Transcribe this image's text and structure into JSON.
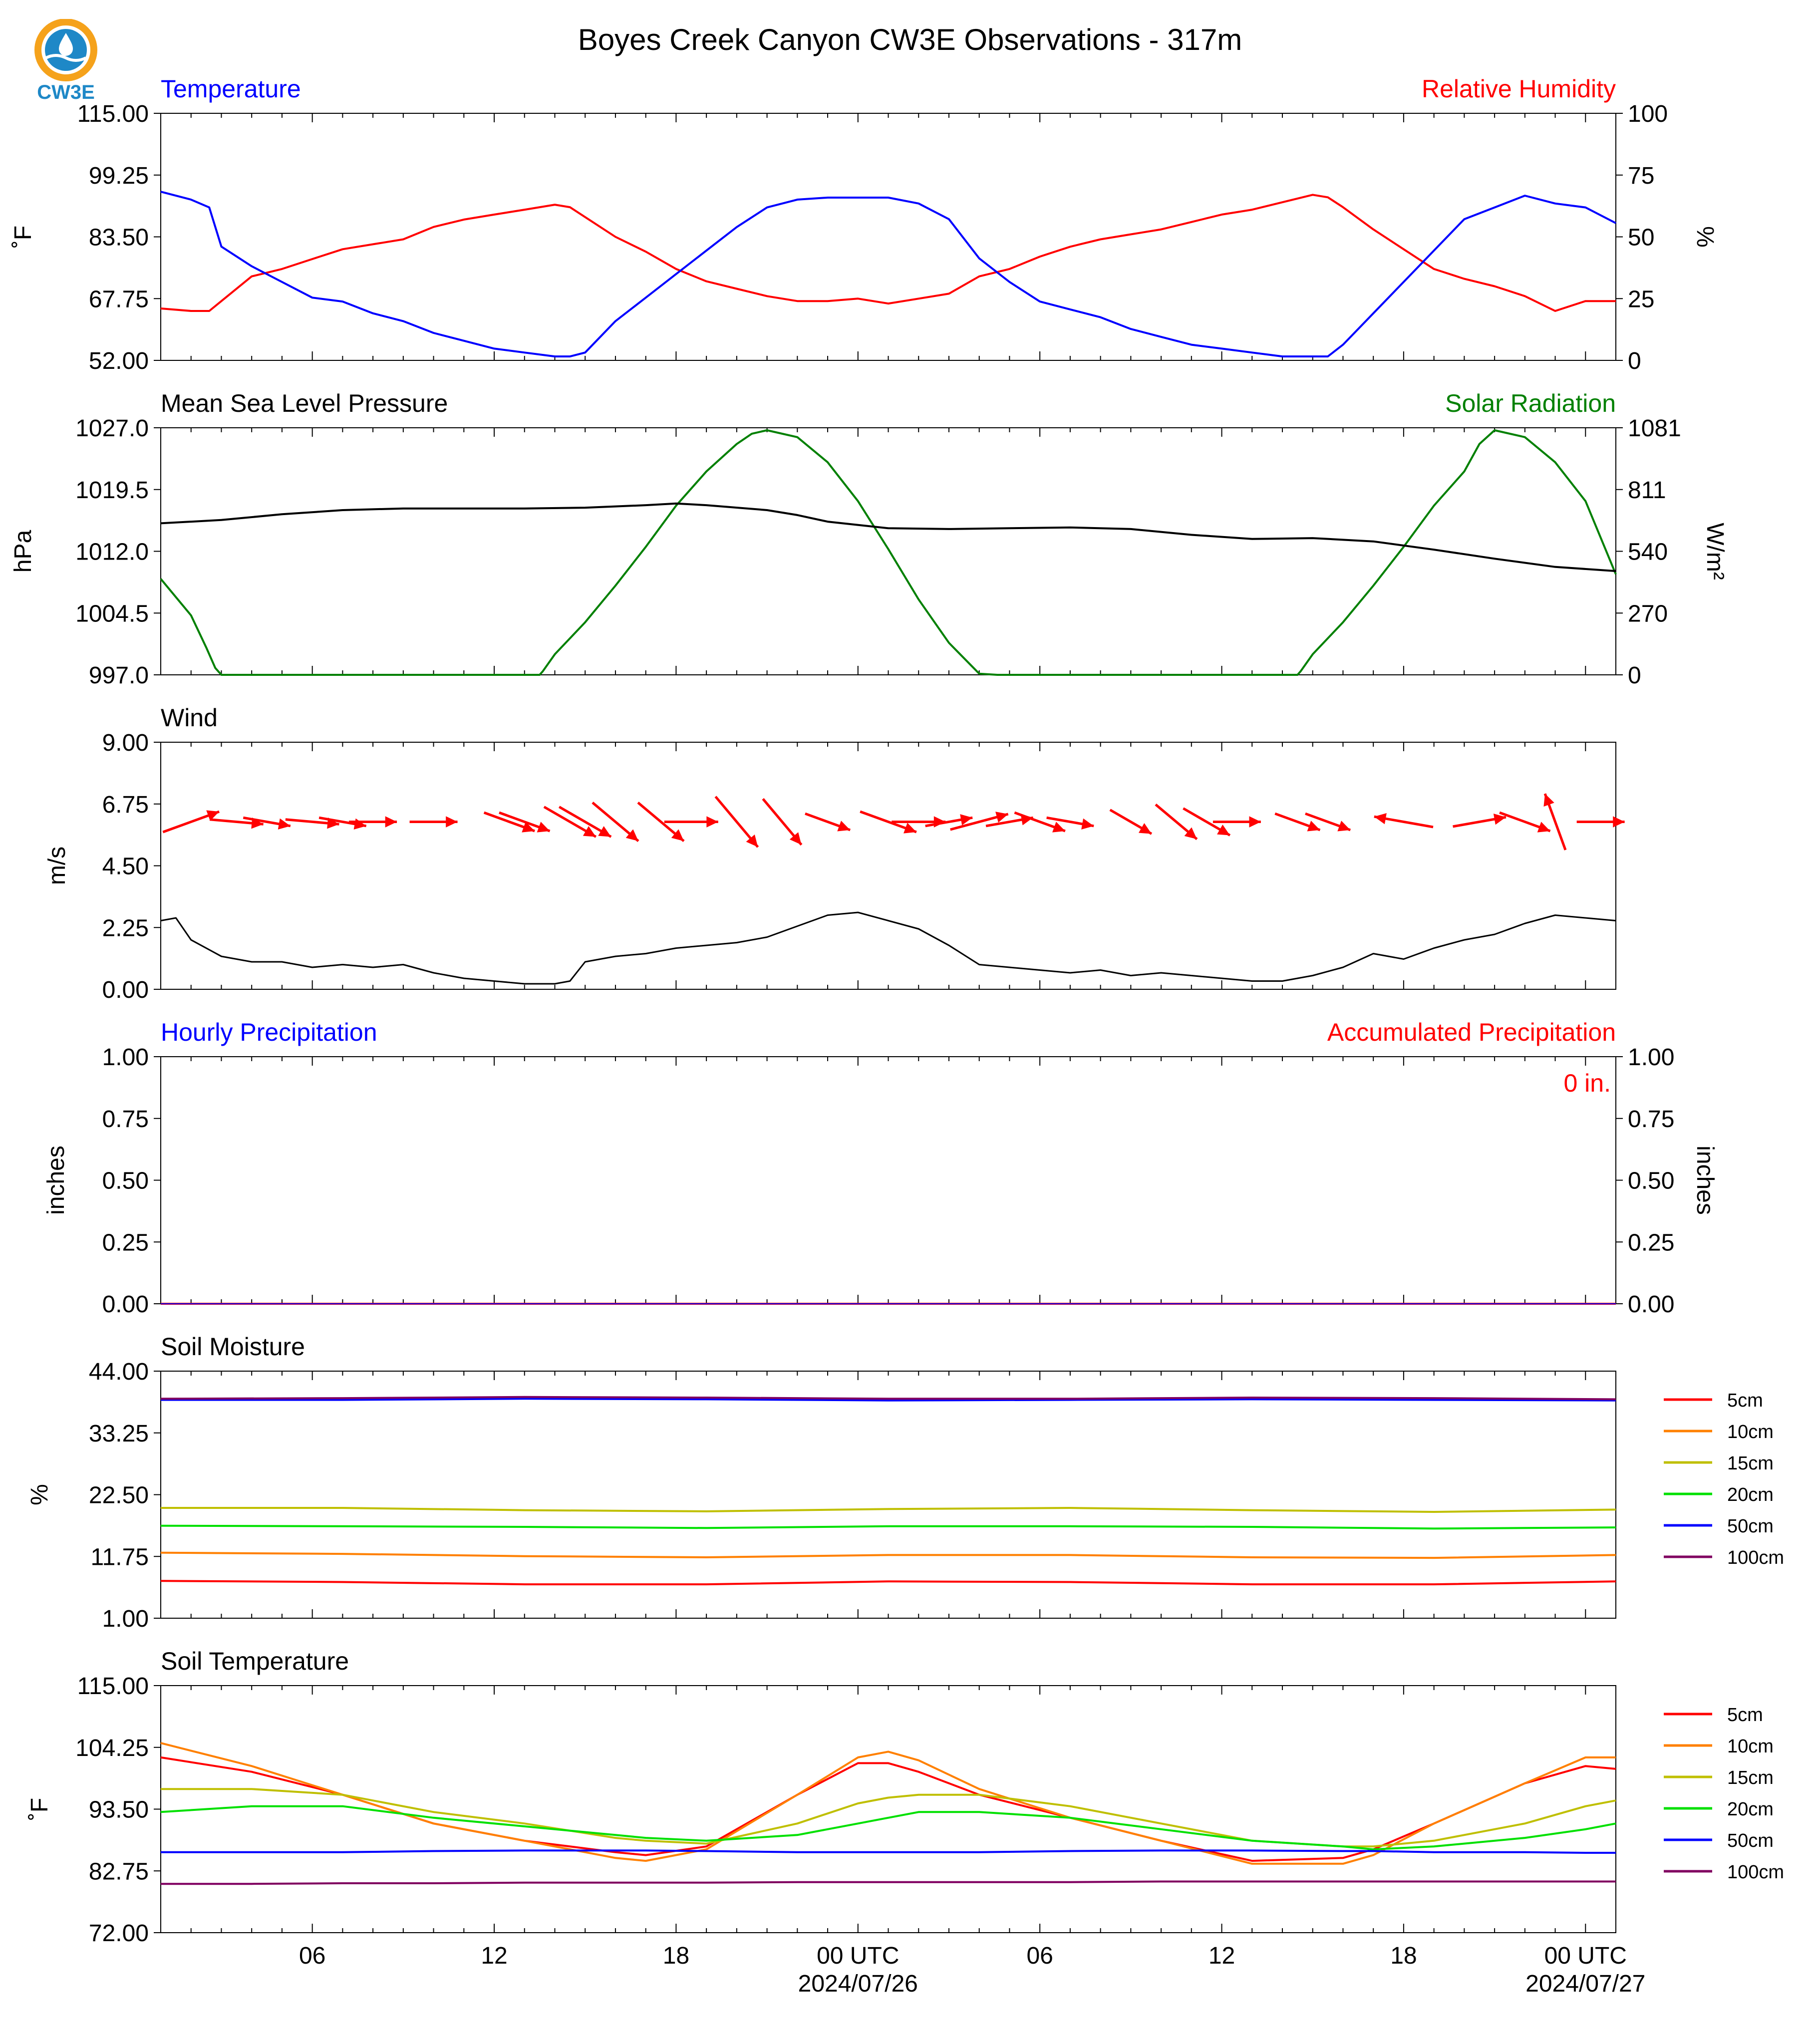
{
  "title": "Boyes Creek Canyon CW3E Observations - 317m",
  "logo": {
    "text": "CW3E",
    "ring_color": "#F5A21B",
    "drop_color": "#1E88C7"
  },
  "x_axis": {
    "ticks": [
      "06",
      "12",
      "18",
      "00 UTC",
      "06",
      "12",
      "18",
      "00 UTC"
    ],
    "dates": [
      "2024/07/26",
      "2024/07/27"
    ]
  },
  "panels": {
    "temp_rh": {
      "left_title": "Temperature",
      "right_title": "Relative Humidity",
      "left_color": "#0000ff",
      "right_color": "#ff0000",
      "left_unit": "˚F",
      "right_unit": "%",
      "left_ticks": [
        "115.00",
        "99.25",
        "83.50",
        "67.75",
        "52.00"
      ],
      "right_ticks": [
        "100",
        "75",
        "50",
        "25",
        "0"
      ]
    },
    "pressure_solar": {
      "left_title": "Mean Sea Level Pressure",
      "right_title": "Solar Radiation",
      "left_color": "#000000",
      "right_color": "#008000",
      "left_unit": "hPa",
      "right_unit": "W/m²",
      "left_ticks": [
        "1027.0",
        "1019.5",
        "1012.0",
        "1004.5",
        "997.0"
      ],
      "right_ticks": [
        "1081",
        "811",
        "540",
        "270",
        "0"
      ]
    },
    "wind": {
      "left_title": "Wind",
      "left_unit": "m/s",
      "left_ticks": [
        "9.00",
        "6.75",
        "4.50",
        "2.25",
        "0.00"
      ]
    },
    "precip": {
      "left_title": "Hourly Precipitation",
      "right_title": "Accumulated Precipitation",
      "left_color": "#0000ff",
      "right_color": "#ff0000",
      "left_unit": "inches",
      "right_unit": "inches",
      "left_ticks": [
        "1.00",
        "0.75",
        "0.50",
        "0.25",
        "0.00"
      ],
      "right_ticks": [
        "1.00",
        "0.75",
        "0.50",
        "0.25",
        "0.00"
      ],
      "accum_label": "0 in."
    },
    "soil_moisture": {
      "left_title": "Soil Moisture",
      "left_unit": "%",
      "left_ticks": [
        "44.00",
        "33.25",
        "22.50",
        "11.75",
        "1.00"
      ],
      "legend": [
        "5cm",
        "10cm",
        "15cm",
        "20cm",
        "50cm",
        "100cm"
      ]
    },
    "soil_temp": {
      "left_title": "Soil Temperature",
      "left_unit": "˚F",
      "left_ticks": [
        "115.00",
        "104.25",
        "93.50",
        "82.75",
        "72.00"
      ],
      "legend": [
        "5cm",
        "10cm",
        "15cm",
        "20cm",
        "50cm",
        "100cm"
      ]
    }
  },
  "chart_data": {
    "type": "line",
    "x_unit": "hours since 2024-07-25 01 UTC",
    "x_range": [
      0,
      48
    ],
    "depth_colors": {
      "5cm": "#ff0000",
      "10cm": "#ff8000",
      "15cm": "#bfbf00",
      "20cm": "#00e000",
      "50cm": "#0000ff",
      "100cm": "#800060"
    },
    "temperature_F": {
      "x": [
        0,
        1,
        1.6,
        2,
        3,
        4,
        5,
        6,
        7,
        8,
        9,
        10,
        11,
        12,
        13,
        13.5,
        14,
        15,
        16,
        17,
        18,
        19,
        20,
        21,
        22,
        23,
        24,
        25,
        26,
        27,
        28,
        29,
        30,
        31,
        32,
        33,
        34,
        35,
        36,
        37,
        38,
        38.5,
        39,
        40,
        41,
        42,
        43,
        44,
        45,
        46,
        47,
        48
      ],
      "y": [
        95,
        93,
        91,
        81,
        76,
        72,
        68,
        67,
        64,
        62,
        59,
        57,
        55,
        54,
        53,
        53,
        54,
        62,
        68,
        74,
        80,
        86,
        91,
        93,
        93.5,
        93.5,
        93.5,
        92,
        88,
        78,
        72,
        67,
        65,
        63,
        60,
        58,
        56,
        55,
        54,
        53,
        53,
        53,
        56,
        64,
        72,
        80,
        88,
        91,
        94,
        92,
        91,
        87
      ],
      "ylim": [
        52,
        115
      ]
    },
    "relative_humidity_pct": {
      "x": [
        0,
        1,
        1.6,
        2,
        3,
        4,
        5,
        6,
        7,
        8,
        9,
        10,
        11,
        12,
        13,
        13.5,
        14,
        15,
        16,
        17,
        18,
        19,
        20,
        21,
        22,
        23,
        24,
        25,
        26,
        27,
        28,
        29,
        30,
        31,
        32,
        33,
        34,
        35,
        36,
        37,
        38,
        38.5,
        39,
        40,
        41,
        42,
        43,
        44,
        45,
        46,
        47,
        48
      ],
      "y": [
        21,
        20,
        20,
        24,
        34,
        37,
        41,
        45,
        47,
        49,
        54,
        57,
        59,
        61,
        63,
        62,
        58,
        50,
        44,
        37,
        32,
        29,
        26,
        24,
        24,
        25,
        23,
        25,
        27,
        34,
        37,
        42,
        46,
        49,
        51,
        53,
        56,
        59,
        61,
        64,
        67,
        66,
        62,
        53,
        45,
        37,
        33,
        30,
        26,
        20,
        24,
        24
      ],
      "ylim": [
        0,
        100
      ]
    },
    "mslp_hPa": {
      "x": [
        0,
        2,
        4,
        6,
        8,
        10,
        12,
        14,
        16,
        17,
        18,
        20,
        21,
        22,
        24,
        26,
        28,
        30,
        32,
        34,
        36,
        38,
        40,
        42,
        44,
        46,
        48
      ],
      "y": [
        1015.4,
        1015.8,
        1016.5,
        1017,
        1017.2,
        1017.2,
        1017.2,
        1017.3,
        1017.6,
        1017.8,
        1017.6,
        1017,
        1016.4,
        1015.6,
        1014.8,
        1014.7,
        1014.8,
        1014.9,
        1014.7,
        1014,
        1013.5,
        1013.6,
        1013.2,
        1012.2,
        1011.1,
        1010.1,
        1009.6
      ],
      "ylim": [
        997,
        1027
      ]
    },
    "solar_W_m2": {
      "x": [
        0,
        1,
        1.5,
        1.8,
        2,
        12.5,
        12.6,
        13,
        14,
        15,
        16,
        17,
        18,
        19,
        19.5,
        20,
        21,
        22,
        23,
        24,
        25,
        26,
        27,
        27.6,
        28,
        37.5,
        37.6,
        38,
        39,
        40,
        41,
        42,
        43,
        43.5,
        44,
        45,
        46,
        47,
        48
      ],
      "y": [
        420,
        260,
        120,
        30,
        0,
        0,
        15,
        90,
        230,
        390,
        560,
        740,
        890,
        1010,
        1055,
        1070,
        1040,
        930,
        760,
        550,
        330,
        140,
        5,
        0,
        0,
        0,
        15,
        90,
        230,
        390,
        560,
        740,
        890,
        1010,
        1070,
        1040,
        930,
        760,
        440
      ],
      "ylim": [
        0,
        1081
      ]
    },
    "wind_speed_m_s": {
      "x": [
        0,
        0.5,
        1,
        2,
        3,
        4,
        5,
        6,
        7,
        8,
        9,
        10,
        11,
        12,
        13,
        13.5,
        14,
        15,
        16,
        17,
        18,
        19,
        20,
        21,
        22,
        23,
        24,
        25,
        26,
        27,
        28,
        29,
        30,
        31,
        32,
        33,
        34,
        35,
        36,
        37,
        38,
        39,
        40,
        41,
        42,
        43,
        44,
        45,
        46,
        47,
        48
      ],
      "y": [
        2.5,
        2.6,
        1.8,
        1.2,
        1.0,
        1.0,
        0.8,
        0.9,
        0.8,
        0.9,
        0.6,
        0.4,
        0.3,
        0.2,
        0.2,
        0.3,
        1.0,
        1.2,
        1.3,
        1.5,
        1.6,
        1.7,
        1.9,
        2.3,
        2.7,
        2.8,
        2.5,
        2.2,
        1.6,
        0.9,
        0.8,
        0.7,
        0.6,
        0.7,
        0.5,
        0.6,
        0.5,
        0.4,
        0.3,
        0.3,
        0.5,
        0.8,
        1.3,
        1.1,
        1.5,
        1.8,
        2.0,
        2.4,
        2.7,
        2.6,
        2.5
      ],
      "ylim": [
        0,
        9
      ]
    },
    "wind_barbs": {
      "x": [
        1,
        2.5,
        3.5,
        5,
        6,
        7,
        9,
        11.5,
        12,
        13.5,
        14,
        15,
        16.5,
        17.5,
        19,
        20.5,
        22,
        24,
        25,
        26,
        27,
        28,
        29,
        30,
        32,
        33.5,
        34.5,
        35.5,
        37.5,
        38.5,
        41,
        43.5,
        45,
        46,
        47.5
      ],
      "dir_deg": [
        250,
        275,
        280,
        275,
        280,
        270,
        270,
        290,
        290,
        300,
        300,
        310,
        310,
        270,
        320,
        320,
        290,
        290,
        270,
        260,
        255,
        260,
        290,
        280,
        300,
        310,
        300,
        270,
        290,
        290,
        100,
        260,
        290,
        160,
        270
      ],
      "speed_m_s": [
        5,
        4.5,
        4,
        4.5,
        4,
        4,
        4,
        4.5,
        4.5,
        5,
        5,
        5,
        5,
        4.5,
        5.5,
        5,
        4,
        5,
        4.5,
        4,
        5,
        4,
        4.5,
        4,
        4,
        4.5,
        4.5,
        4,
        4,
        4,
        5,
        4.5,
        4.5,
        5,
        4
      ]
    },
    "hourly_precip_in": {
      "x": [
        0,
        48
      ],
      "y": [
        0,
        0
      ],
      "ylim": [
        0,
        1
      ]
    },
    "accumulated_precip_in": {
      "x": [
        0,
        48
      ],
      "y": [
        0,
        0
      ],
      "ylim": [
        0,
        1
      ]
    },
    "soil_moisture_pct": {
      "x": [
        0,
        6,
        12,
        18,
        24,
        30,
        36,
        42,
        48
      ],
      "ylim": [
        1,
        44
      ],
      "series": [
        {
          "name": "5cm",
          "values": [
            7.5,
            7.3,
            6.9,
            6.9,
            7.4,
            7.3,
            6.9,
            6.9,
            7.4
          ]
        },
        {
          "name": "10cm",
          "values": [
            12.4,
            12.2,
            11.8,
            11.6,
            12.0,
            12.0,
            11.6,
            11.5,
            12.0
          ]
        },
        {
          "name": "15cm",
          "values": [
            20.2,
            20.2,
            19.8,
            19.6,
            20.0,
            20.2,
            19.8,
            19.5,
            19.9
          ]
        },
        {
          "name": "20cm",
          "values": [
            17.1,
            17.0,
            16.9,
            16.7,
            17.0,
            17.0,
            16.9,
            16.6,
            16.8
          ]
        },
        {
          "name": "50cm",
          "values": [
            39.0,
            39.0,
            39.2,
            39.1,
            38.9,
            39.0,
            39.1,
            39.0,
            38.9
          ]
        },
        {
          "name": "100cm",
          "values": [
            39.2,
            39.3,
            39.5,
            39.4,
            39.2,
            39.2,
            39.4,
            39.3,
            39.1
          ]
        }
      ]
    },
    "soil_temperature_F": {
      "x": [
        0,
        3,
        6,
        9,
        12,
        15,
        16,
        18,
        21,
        23,
        24,
        25,
        27,
        30,
        33,
        36,
        39,
        40,
        42,
        45,
        47,
        48
      ],
      "ylim": [
        72,
        115
      ],
      "series": [
        {
          "name": "5cm",
          "values": [
            102.5,
            100,
            96,
            91,
            88,
            86,
            85.5,
            87,
            96,
            101.5,
            101.5,
            100,
            96,
            92,
            88,
            84.5,
            85,
            86.5,
            91,
            98,
            101,
            100.5
          ]
        },
        {
          "name": "10cm",
          "values": [
            105,
            101,
            96,
            91,
            88,
            85,
            84.5,
            86.5,
            96,
            102.5,
            103.5,
            102,
            97,
            92,
            88,
            84,
            84,
            85.5,
            91,
            98,
            102.5,
            102.5
          ]
        },
        {
          "name": "15cm",
          "values": [
            97,
            97,
            96,
            93,
            91,
            88.5,
            88,
            87.5,
            91,
            94.5,
            95.5,
            96,
            96,
            94,
            91,
            88,
            87,
            87,
            88,
            91,
            94,
            95
          ]
        },
        {
          "name": "20cm",
          "values": [
            93,
            94,
            94,
            92,
            90.5,
            89,
            88.5,
            88,
            89,
            91,
            92,
            93,
            93,
            92,
            90,
            88,
            87,
            86.5,
            87,
            88.5,
            90,
            91
          ]
        },
        {
          "name": "50cm",
          "values": [
            86,
            86,
            86,
            86.2,
            86.3,
            86.3,
            86.3,
            86.2,
            86,
            86,
            86,
            86,
            86,
            86.2,
            86.3,
            86.3,
            86.2,
            86.2,
            86,
            86,
            85.9,
            85.9
          ]
        },
        {
          "name": "100cm",
          "values": [
            80.5,
            80.5,
            80.6,
            80.6,
            80.7,
            80.7,
            80.7,
            80.7,
            80.8,
            80.8,
            80.8,
            80.8,
            80.8,
            80.8,
            80.9,
            80.9,
            80.9,
            80.9,
            80.9,
            80.9,
            80.9,
            80.9
          ]
        }
      ]
    }
  }
}
